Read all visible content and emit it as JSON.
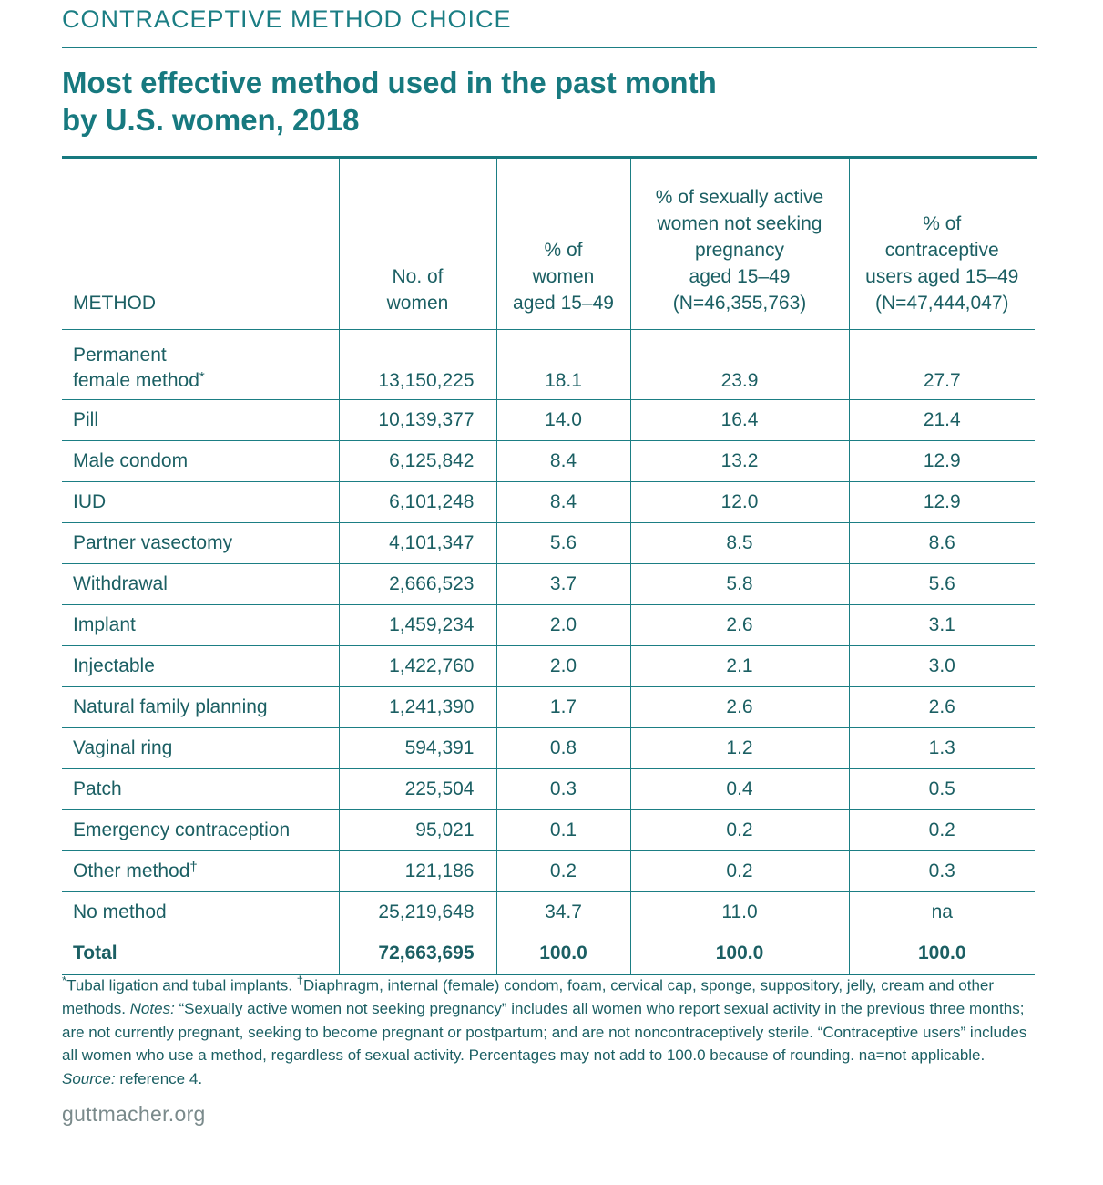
{
  "kicker": "CONTRACEPTIVE METHOD CHOICE",
  "title_line1": "Most effective method used in the past month",
  "title_line2": "by U.S. women, 2018",
  "headers": {
    "method": "METHOD",
    "count": [
      "No. of",
      "women"
    ],
    "pct_women": [
      "% of",
      "women",
      "aged 15–49"
    ],
    "pct_sexually_active": [
      "% of sexually active",
      "women not seeking",
      "pregnancy",
      "aged 15–49",
      "(N=46,355,763)"
    ],
    "pct_users": [
      "% of",
      "contraceptive",
      "users aged 15–49",
      "(N=47,444,047)"
    ]
  },
  "first_row": {
    "method_line1": "Permanent",
    "method_line2": "female method",
    "footnote_mark": "*",
    "count": "13,150,225",
    "pct_women": "18.1",
    "pct_sexually_active": "23.9",
    "pct_users": "27.7"
  },
  "rows": [
    {
      "method": "Pill",
      "mark": "",
      "count": "10,139,377",
      "pct_women": "14.0",
      "pct_sexually_active": "16.4",
      "pct_users": "21.4"
    },
    {
      "method": "Male condom",
      "mark": "",
      "count": "6,125,842",
      "pct_women": "8.4",
      "pct_sexually_active": "13.2",
      "pct_users": "12.9"
    },
    {
      "method": "IUD",
      "mark": "",
      "count": "6,101,248",
      "pct_women": "8.4",
      "pct_sexually_active": "12.0",
      "pct_users": "12.9"
    },
    {
      "method": "Partner vasectomy",
      "mark": "",
      "count": "4,101,347",
      "pct_women": "5.6",
      "pct_sexually_active": "8.5",
      "pct_users": "8.6"
    },
    {
      "method": "Withdrawal",
      "mark": "",
      "count": "2,666,523",
      "pct_women": "3.7",
      "pct_sexually_active": "5.8",
      "pct_users": "5.6"
    },
    {
      "method": "Implant",
      "mark": "",
      "count": "1,459,234",
      "pct_women": "2.0",
      "pct_sexually_active": "2.6",
      "pct_users": "3.1"
    },
    {
      "method": "Injectable",
      "mark": "",
      "count": "1,422,760",
      "pct_women": "2.0",
      "pct_sexually_active": "2.1",
      "pct_users": "3.0"
    },
    {
      "method": "Natural family planning",
      "mark": "",
      "count": "1,241,390",
      "pct_women": "1.7",
      "pct_sexually_active": "2.6",
      "pct_users": "2.6"
    },
    {
      "method": "Vaginal ring",
      "mark": "",
      "count": "594,391",
      "pct_women": "0.8",
      "pct_sexually_active": "1.2",
      "pct_users": "1.3"
    },
    {
      "method": "Patch",
      "mark": "",
      "count": "225,504",
      "pct_women": "0.3",
      "pct_sexually_active": "0.4",
      "pct_users": "0.5"
    },
    {
      "method": "Emergency contraception",
      "mark": "",
      "count": "95,021",
      "pct_women": "0.1",
      "pct_sexually_active": "0.2",
      "pct_users": "0.2"
    },
    {
      "method": "Other method",
      "mark": "†",
      "count": "121,186",
      "pct_women": "0.2",
      "pct_sexually_active": "0.2",
      "pct_users": "0.3"
    },
    {
      "method": "No method",
      "mark": "",
      "count": "25,219,648",
      "pct_women": "34.7",
      "pct_sexually_active": "11.0",
      "pct_users": "na"
    }
  ],
  "total": {
    "method": "Total",
    "count": "72,663,695",
    "pct_women": "100.0",
    "pct_sexually_active": "100.0",
    "pct_users": "100.0"
  },
  "footnote": {
    "mark1": "*",
    "text1": "Tubal ligation and tubal implants. ",
    "mark2": "†",
    "text2": "Diaphragm, internal (female) condom, foam, cervical cap, sponge, suppository, jelly, cream and other methods. ",
    "notes_label": "Notes:",
    "notes_text": " “Sexually active women not seeking pregnancy” includes all women who report sexual activity in the previous three months; are not currently pregnant, seeking to become pregnant or postpartum; and are not noncontraceptively sterile. “Contraceptive users” includes all women who use a method, regardless of sexual activity. Percentages may not add to 100.0 because of rounding. na=not applicable. ",
    "source_label": "Source:",
    "source_text": " reference 4."
  },
  "site": "guttmacher.org",
  "colors": {
    "teal": "#17797f",
    "text": "#1b5f63",
    "gray": "#7a8a8b"
  }
}
